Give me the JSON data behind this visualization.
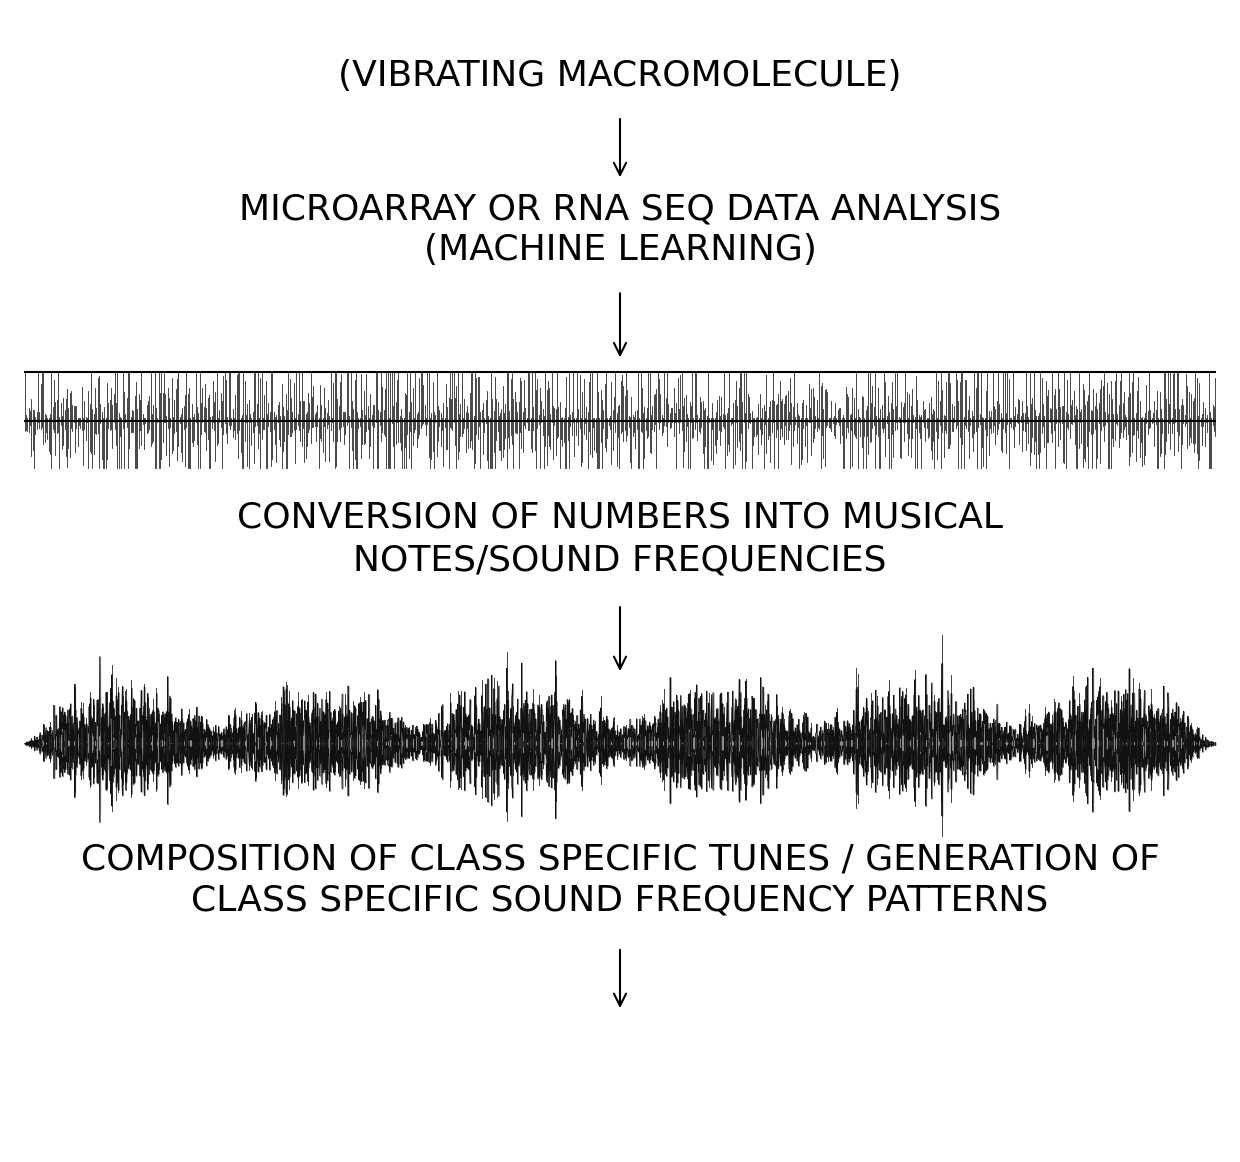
{
  "bg_color": "#ffffff",
  "text_color": "#000000",
  "top_text1": "(VIBRATING MACROMOLECULE)",
  "text2_line1": "MICROARRAY OR RNA SEQ DATA ANALYSIS",
  "text2_line2": "(MACHINE LEARNING)",
  "text3_line1": "CONVERSION OF NUMBERS INTO MUSICAL",
  "text3_line2": "NOTES/SOUND FREQUENCIES",
  "text4_line1": "COMPOSITION OF CLASS SPECIFIC TUNES / GENERATION OF",
  "text4_line2": "CLASS SPECIFIC SOUND FREQUENCY PATTERNS",
  "font_size": 26,
  "font_weight": "normal",
  "arrow_color": "#000000",
  "wave1_color": "#111111",
  "wave2_color": "#222222",
  "wave2_fill": "#666666"
}
